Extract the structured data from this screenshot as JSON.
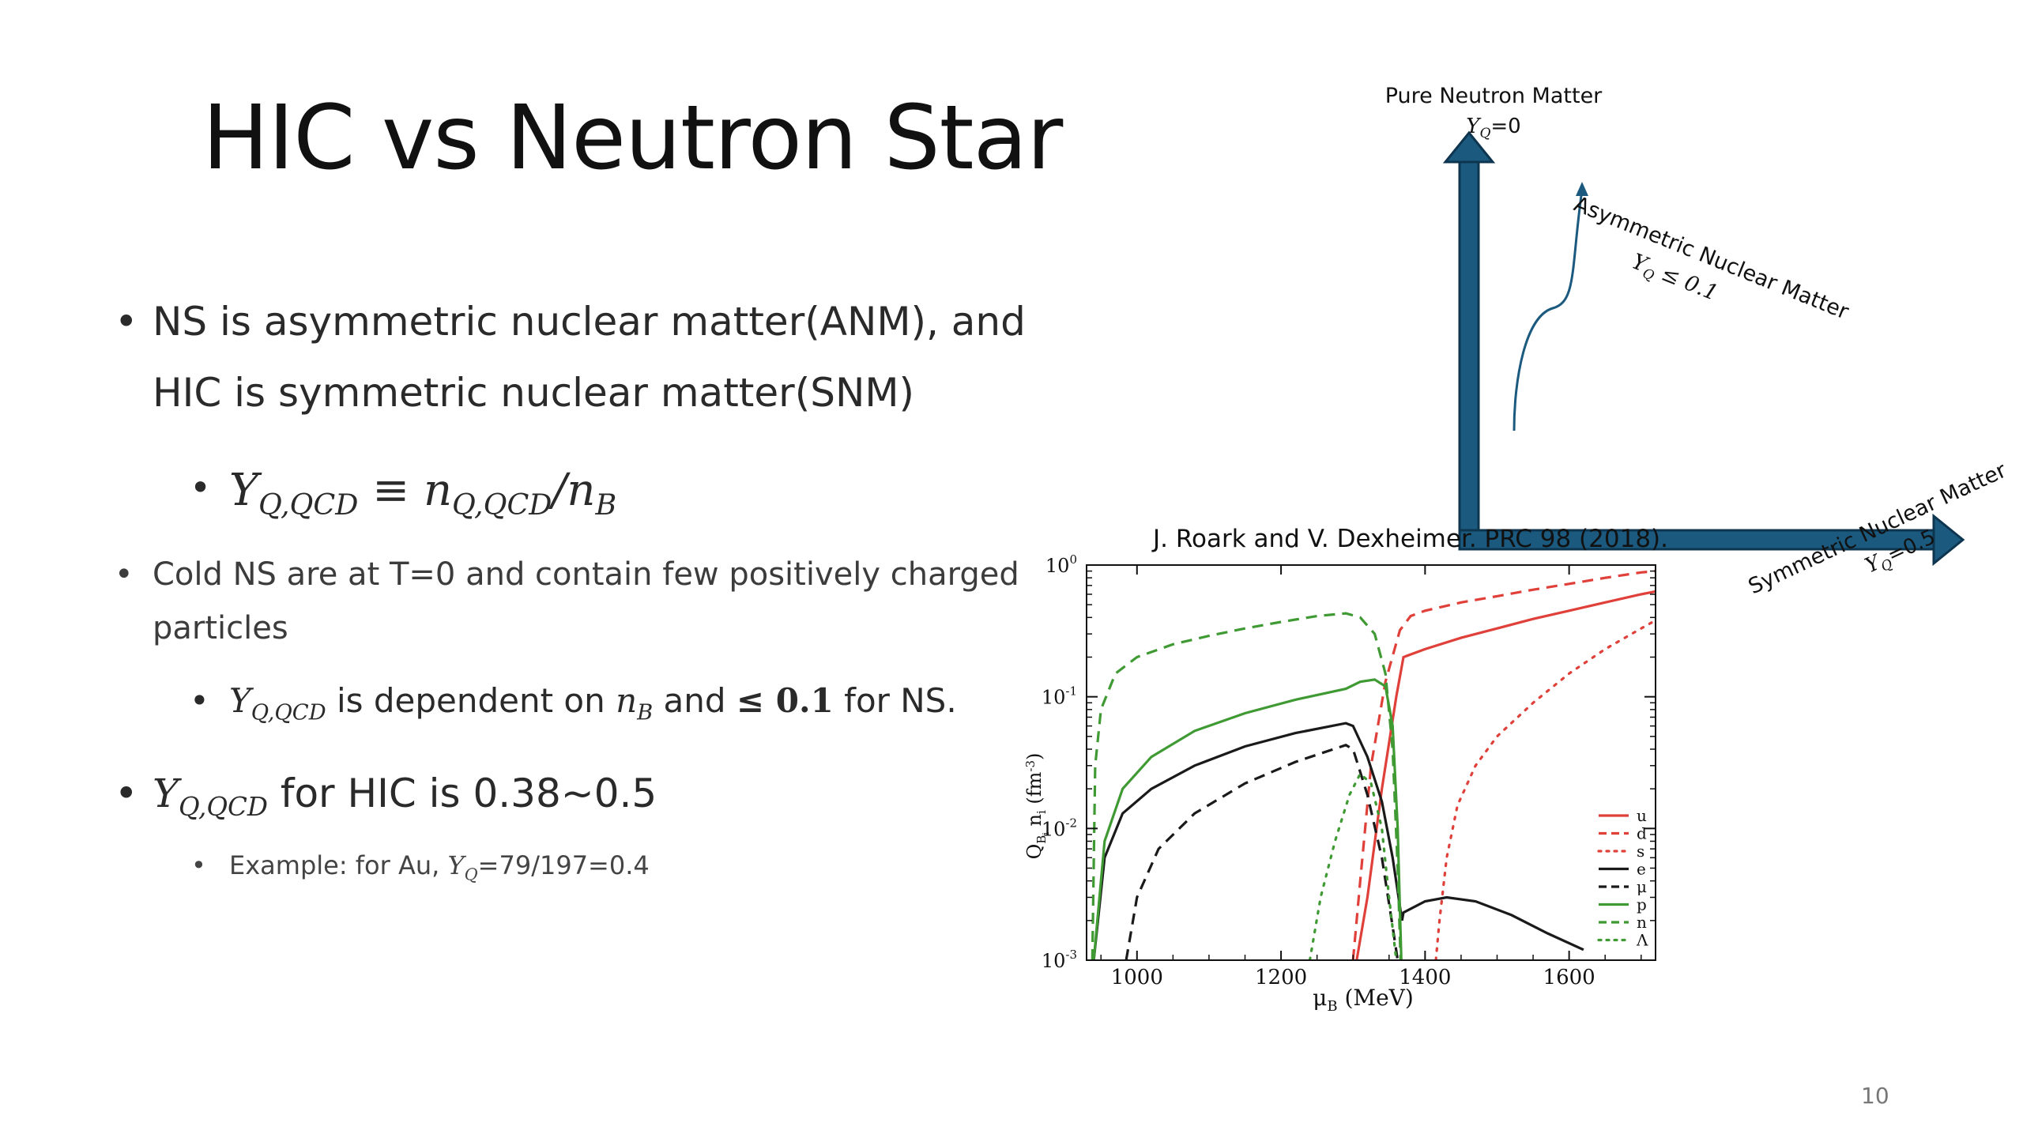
{
  "slide": {
    "title": "HIC vs Neutron Star",
    "page_number": "10"
  },
  "bullets": {
    "b1_line1": "NS is asymmetric nuclear matter(ANM), and",
    "b1_line2": "HIC is symmetric nuclear matter(SNM)",
    "b1a_lhs": "Y",
    "b1a_lhs_sub": "Q,QCD",
    "b1a_op": " ≡ ",
    "b1a_num": "n",
    "b1a_num_sub": "Q,QCD",
    "b1a_slash": "/",
    "b1a_den": "n",
    "b1a_den_sub": "B",
    "b2_line1": "Cold NS are at T=0 and contain few positively charged",
    "b2_line2": "particles",
    "b2a_var": "Y",
    "b2a_var_sub": "Q,QCD",
    "b2a_text1": " is dependent on ",
    "b2a_nb": "n",
    "b2a_nb_sub": "B",
    "b2a_text2": " and ",
    "b2a_le": "≤ 0.1",
    "b2a_text3": " for NS.",
    "b3_var": "Y",
    "b3_var_sub": "Q,QCD",
    "b3_text": " for HIC is 0.38~0.5",
    "b3a_text1": "Example: for Au, ",
    "b3a_var": "Y",
    "b3a_var_sub": "Q",
    "b3a_text2": "=79/197=0.4"
  },
  "diagram": {
    "top_label": "Pure Neutron Matter",
    "top_sub_var": "Y",
    "top_sub_sub": "Q",
    "top_sub_val": "=0",
    "diag_label": "Asymmetric Nuclear Matter",
    "diag_sub": "Y",
    "diag_sub_sub": "Q",
    "diag_sub_val": " ≤ 0.1",
    "right_label": "Symmetric Nuclear Matter",
    "right_sub_var": "Y",
    "right_sub_sub": "Q",
    "right_sub_val": "=0.5",
    "arrow_color": "#1b5a7e"
  },
  "chart_data": {
    "type": "line",
    "title": "J. Roark and V. Dexheimer. PRC 98 (2018).",
    "xlabel": "μ_B (MeV)",
    "ylabel": "Q_B_i n_i (fm^-3)",
    "xlabel_main": "μ",
    "xlabel_sub": "B",
    "xlabel_unit": " (MeV)",
    "ylabel_display": "Q",
    "xlim": [
      930,
      1720
    ],
    "ylim": [
      0.001,
      1.0
    ],
    "yscale": "log",
    "x_ticks": [
      "1000",
      "1200",
      "1400",
      "1600"
    ],
    "x_tick_values": [
      1000,
      1200,
      1400,
      1600
    ],
    "y_ticks": [
      "10",
      "10",
      "10",
      "10"
    ],
    "y_tick_exps": [
      "0",
      "-1",
      "-2",
      "-3"
    ],
    "y_tick_values": [
      1.0,
      0.1,
      0.01,
      0.001
    ],
    "legend_position": "bottom-right",
    "series": [
      {
        "name": "u",
        "color": "#e0403a",
        "dash": "solid",
        "x": [
          1305,
          1320,
          1340,
          1360,
          1370,
          1400,
          1450,
          1500,
          1550,
          1600,
          1650,
          1700,
          1720
        ],
        "y": [
          0.001,
          0.003,
          0.02,
          0.1,
          0.2,
          0.23,
          0.28,
          0.33,
          0.39,
          0.45,
          0.52,
          0.6,
          0.63
        ]
      },
      {
        "name": "d",
        "color": "#e0403a",
        "dash": "dash",
        "x": [
          1300,
          1310,
          1325,
          1345,
          1365,
          1380,
          1400,
          1450,
          1500,
          1550,
          1600,
          1650,
          1700,
          1720
        ],
        "y": [
          0.001,
          0.004,
          0.03,
          0.13,
          0.32,
          0.41,
          0.45,
          0.52,
          0.58,
          0.65,
          0.72,
          0.8,
          0.88,
          0.9
        ]
      },
      {
        "name": "s",
        "color": "#e0403a",
        "dash": "dot",
        "x": [
          1415,
          1420,
          1430,
          1445,
          1470,
          1500,
          1550,
          1600,
          1650,
          1700,
          1720
        ],
        "y": [
          0.001,
          0.002,
          0.006,
          0.015,
          0.03,
          0.05,
          0.09,
          0.15,
          0.23,
          0.33,
          0.38
        ]
      },
      {
        "name": "e",
        "color": "#1a1a1a",
        "dash": "solid",
        "x": [
          940,
          955,
          980,
          1020,
          1080,
          1150,
          1220,
          1290,
          1300,
          1320,
          1340,
          1355,
          1368,
          1370,
          1400,
          1430,
          1470,
          1520,
          1570,
          1620
        ],
        "y": [
          0.001,
          0.006,
          0.013,
          0.02,
          0.03,
          0.042,
          0.053,
          0.063,
          0.06,
          0.035,
          0.016,
          0.006,
          0.002,
          0.0023,
          0.0028,
          0.003,
          0.0028,
          0.0022,
          0.0016,
          0.0012
        ]
      },
      {
        "name": "μ",
        "color": "#1a1a1a",
        "dash": "dash",
        "x": [
          985,
          1000,
          1030,
          1080,
          1150,
          1220,
          1290,
          1300,
          1320,
          1340,
          1355,
          1362
        ],
        "y": [
          0.001,
          0.003,
          0.007,
          0.013,
          0.022,
          0.032,
          0.043,
          0.04,
          0.018,
          0.006,
          0.0018,
          0.001
        ]
      },
      {
        "name": "p",
        "color": "#3f9a33",
        "dash": "solid",
        "x": [
          940,
          955,
          980,
          1020,
          1080,
          1150,
          1220,
          1290,
          1310,
          1330,
          1345,
          1355,
          1362,
          1367
        ],
        "y": [
          0.001,
          0.008,
          0.02,
          0.035,
          0.055,
          0.075,
          0.095,
          0.115,
          0.13,
          0.135,
          0.12,
          0.06,
          0.01,
          0.001
        ]
      },
      {
        "name": "n",
        "color": "#3f9a33",
        "dash": "dash",
        "x": [
          938,
          942,
          950,
          970,
          1000,
          1050,
          1100,
          1150,
          1200,
          1250,
          1290,
          1310,
          1330,
          1345,
          1355,
          1362,
          1366
        ],
        "y": [
          0.001,
          0.03,
          0.08,
          0.15,
          0.2,
          0.25,
          0.29,
          0.33,
          0.37,
          0.41,
          0.43,
          0.4,
          0.3,
          0.15,
          0.04,
          0.005,
          0.001
        ]
      },
      {
        "name": "Λ",
        "color": "#3f9a33",
        "dash": "dot",
        "x": [
          1240,
          1255,
          1275,
          1295,
          1310,
          1325,
          1340,
          1350,
          1360
        ],
        "y": [
          0.001,
          0.003,
          0.008,
          0.018,
          0.026,
          0.022,
          0.01,
          0.003,
          0.001
        ]
      }
    ]
  }
}
